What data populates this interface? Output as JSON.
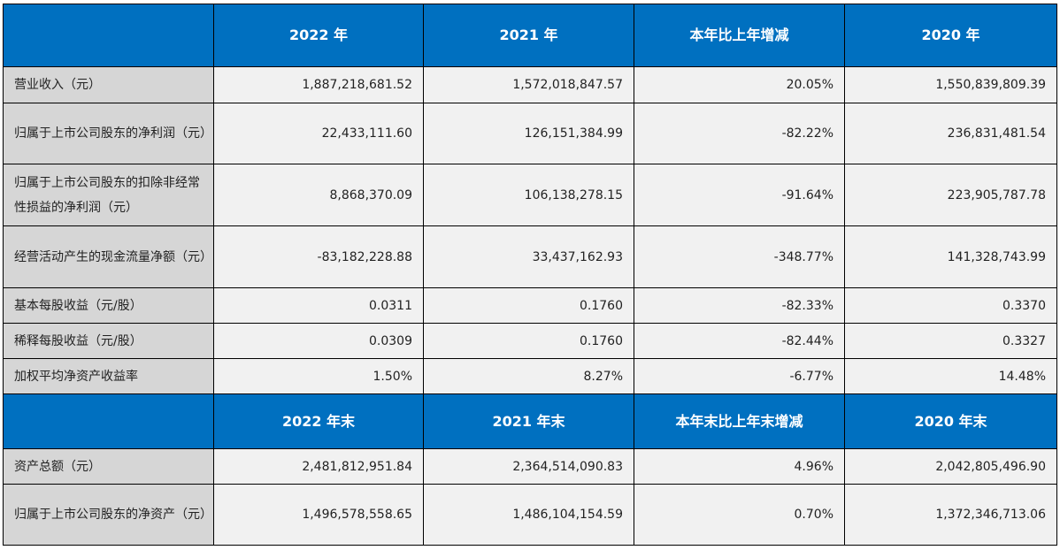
{
  "colors": {
    "header_bg": "#0070c0",
    "label_bg": "#d6d6d6",
    "cell_bg": "#f1f1f1"
  },
  "header1": [
    "",
    "2022 年",
    "2021 年",
    "本年比上年增减",
    "2020 年"
  ],
  "rows1": [
    {
      "label": "营业收入（元）",
      "values": [
        "1,887,218,681.52",
        "1,572,018,847.57",
        "20.05%",
        "1,550,839,809.39"
      ]
    },
    {
      "label": "归属于上市公司股东的净利润（元）",
      "values": [
        "22,433,111.60",
        "126,151,384.99",
        "-82.22%",
        "236,831,481.54"
      ]
    },
    {
      "label": "归属于上市公司股东的扣除非经常性损益的净利润（元）",
      "values": [
        "8,868,370.09",
        "106,138,278.15",
        "-91.64%",
        "223,905,787.78"
      ]
    },
    {
      "label": "经营活动产生的现金流量净额（元）",
      "values": [
        "-83,182,228.88",
        "33,437,162.93",
        "-348.77%",
        "141,328,743.99"
      ]
    },
    {
      "label": "基本每股收益（元/股）",
      "values": [
        "0.0311",
        "0.1760",
        "-82.33%",
        "0.3370"
      ]
    },
    {
      "label": "稀释每股收益（元/股）",
      "values": [
        "0.0309",
        "0.1760",
        "-82.44%",
        "0.3327"
      ]
    },
    {
      "label": "加权平均净资产收益率",
      "values": [
        "1.50%",
        "8.27%",
        "-6.77%",
        "14.48%"
      ]
    }
  ],
  "header2": [
    "",
    "2022 年末",
    "2021 年末",
    "本年末比上年末增减",
    "2020 年末"
  ],
  "rows2": [
    {
      "label": "资产总额（元）",
      "values": [
        "2,481,812,951.84",
        "2,364,514,090.83",
        "4.96%",
        "2,042,805,496.90"
      ]
    },
    {
      "label": "归属于上市公司股东的净资产（元）",
      "values": [
        "1,496,578,558.65",
        "1,486,104,154.59",
        "0.70%",
        "1,372,346,713.06"
      ]
    }
  ]
}
